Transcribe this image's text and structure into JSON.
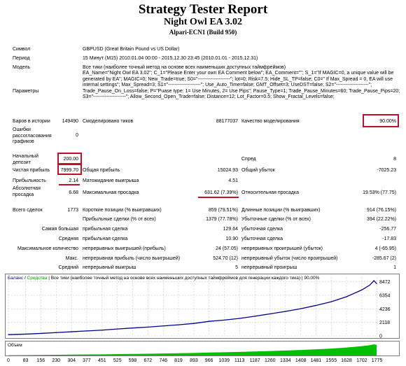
{
  "report": {
    "title": "Strategy Tester Report",
    "ea_name": "Night Owl EA 3.02",
    "broker": "Alpari-ECN1 (Build 950)"
  },
  "info": {
    "symbol_label": "Символ",
    "symbol_value": "GBPUSD (Great Britain Pound vs US Dollar)",
    "period_label": "Период",
    "period_value": "15 Минут (M15) 2010.01.04 00:00 - 2015.12.30 23:45 (2010.01.01 - 2015.12.31)",
    "model_label": "Модель",
    "model_value": "Все тики (наиболее точный метод на основе всех наименьших доступных таймфреймов)",
    "params_label": "Параметры",
    "params_value": "EA_Name=\"Night Owl EA 3.02\"; C_1=\"Please Enter your own EA Comment below\"; EA_Comment=\"\"; S_1=\"If MAGIC=0, a unique value will be generated by EA\"; MAGIC=0; New_Trade=true; S0=\"--------------------\"; lot=0; Risk=7.5; Hide_SL_TP=false; C0=\" If Max_Spread = 0, EA will use internal settings\"; Max_Spread=3; S1=\"--------------------\"; Use_Auto_Time=false; GMT_Offset=3; UseDST=false; S2=\"--------------------\"; Trade_Pause_On_Loss=false; P=\"Puase type: 1= Use Minutes, 2= Use Pips\"; Pause_Type=1; Trade_Pause_Minutes=60; Trade_Pause_Pips=20; S3=\"--------------------\"; Allow_Second_Open_Trade=false; Distance=12; Lot_Factor=0.5; Show_Fractal_Levels=false;",
    "bars_label": "Баров в истории",
    "bars_value": "149490",
    "ticks_label": "Смоделировано тиков",
    "ticks_value": "88177037",
    "quality_label": "Качество моделирования",
    "quality_value": "90.00%",
    "errors_label": "Ошибки рассогласования графиков",
    "errors_value": "0"
  },
  "stats": {
    "deposit_label": "Начальный депозит",
    "deposit_value": "200.00",
    "spread_label": "Спред",
    "spread_value": "8",
    "netprofit_label": "Чистая прибыль",
    "netprofit_value": "7999.70",
    "grossprofit_label": "Общая прибыль",
    "grossprofit_value": "15024.93",
    "grossloss_label": "Общий убыток",
    "grossloss_value": "-7025.23",
    "pf_label": "Прибыльность",
    "pf_value": "2.14",
    "expected_label": "Матожидание выигрыша",
    "expected_value": "4.51",
    "absdd_label": "Абсолютная просадка",
    "absdd_value": "6.68",
    "maxdd_label": "Максимальная просадка",
    "maxdd_value": "631.62 (7.39%)",
    "reldd_label": "Относительная просадка",
    "reldd_value": "19.53% (77.75)",
    "trades_label": "Всего сделок",
    "trades_value": "1773",
    "short_label": "Короткие позиции (% выигравших)",
    "short_value": "859 (79.51%)",
    "long_label": "Длинные позиции (% выигравших)",
    "long_value": "914 (76.15%)",
    "profit_trades_label": "Прибыльные сделки (% от всех)",
    "profit_trades_value": "1379 (77.78%)",
    "loss_trades_label": "Убыточные сделки (% от всех)",
    "loss_trades_value": "394 (22.22%)",
    "largest_label": "Самая большая",
    "largest_profit_label": "прибыльная сделка",
    "largest_profit_value": "129.64",
    "largest_loss_label": "убыточная сделка",
    "largest_loss_value": "-256.77",
    "average_label": "Средняя",
    "average_profit_label": "прибыльная сделка",
    "average_profit_value": "10.90",
    "average_loss_label": "убыточная сделка",
    "average_loss_value": "-17.83",
    "maxcount_label": "Максимальное количество",
    "maxcount_wins_label": "непрерывных выигрышей (прибыль)",
    "maxcount_wins_value": "24 (57.05)",
    "maxcount_losses_label": "непрерывных проигрышей (убыток)",
    "maxcount_losses_value": "4 (-65.95)",
    "max_label": "Макс.",
    "max_profit_label": "непрерывная прибыль (число выигрышей)",
    "max_profit_value": "524.70 (12)",
    "max_loss_label": "непрерывный убыток (число проигрышей)",
    "max_loss_value": "-285.67 (2)",
    "avg_label": "Средний",
    "avg_wins_label": "непрерывный выигрыш",
    "avg_wins_value": "5",
    "avg_losses_label": "непрерывный проигрыш",
    "avg_losses_value": "1"
  },
  "chart_data": {
    "type": "line",
    "legend": [
      "Баланс",
      "Средства"
    ],
    "legend_rest": "Все тики (наиболее точный метод на основе всех наименьших доступных таймфреймов для генерации каждого тика)",
    "legend_quality": "90.00%",
    "volume_label": "Объем",
    "y_ticks": [
      "8472",
      "6354",
      "4236",
      "2118",
      "0"
    ],
    "ylim": [
      0,
      9200
    ],
    "x_ticks": [
      "0",
      "83",
      "156",
      "230",
      "304",
      "377",
      "451",
      "525",
      "598",
      "672",
      "746",
      "819",
      "893",
      "966",
      "1039",
      "1113",
      "1187",
      "1260",
      "1334",
      "1408",
      "1481",
      "1555",
      "1628",
      "1702",
      "1775"
    ],
    "xlim": [
      0,
      1773
    ],
    "balance_x": [
      0,
      83,
      156,
      230,
      304,
      377,
      451,
      525,
      598,
      672,
      746,
      819,
      893,
      966,
      1039,
      1113,
      1187,
      1260,
      1334,
      1408,
      1481,
      1555,
      1628,
      1702,
      1740,
      1760,
      1773
    ],
    "balance_y": [
      200,
      280,
      390,
      520,
      650,
      780,
      900,
      1080,
      1240,
      1380,
      1560,
      1740,
      1950,
      2280,
      2480,
      2740,
      3080,
      3450,
      3830,
      4260,
      4770,
      5350,
      6130,
      7200,
      7950,
      8650,
      8199
    ],
    "colors": {
      "balance": "#00008b",
      "volume": "#00c000",
      "grid": "#c8c8c8",
      "highlight": "#c0102a"
    }
  }
}
